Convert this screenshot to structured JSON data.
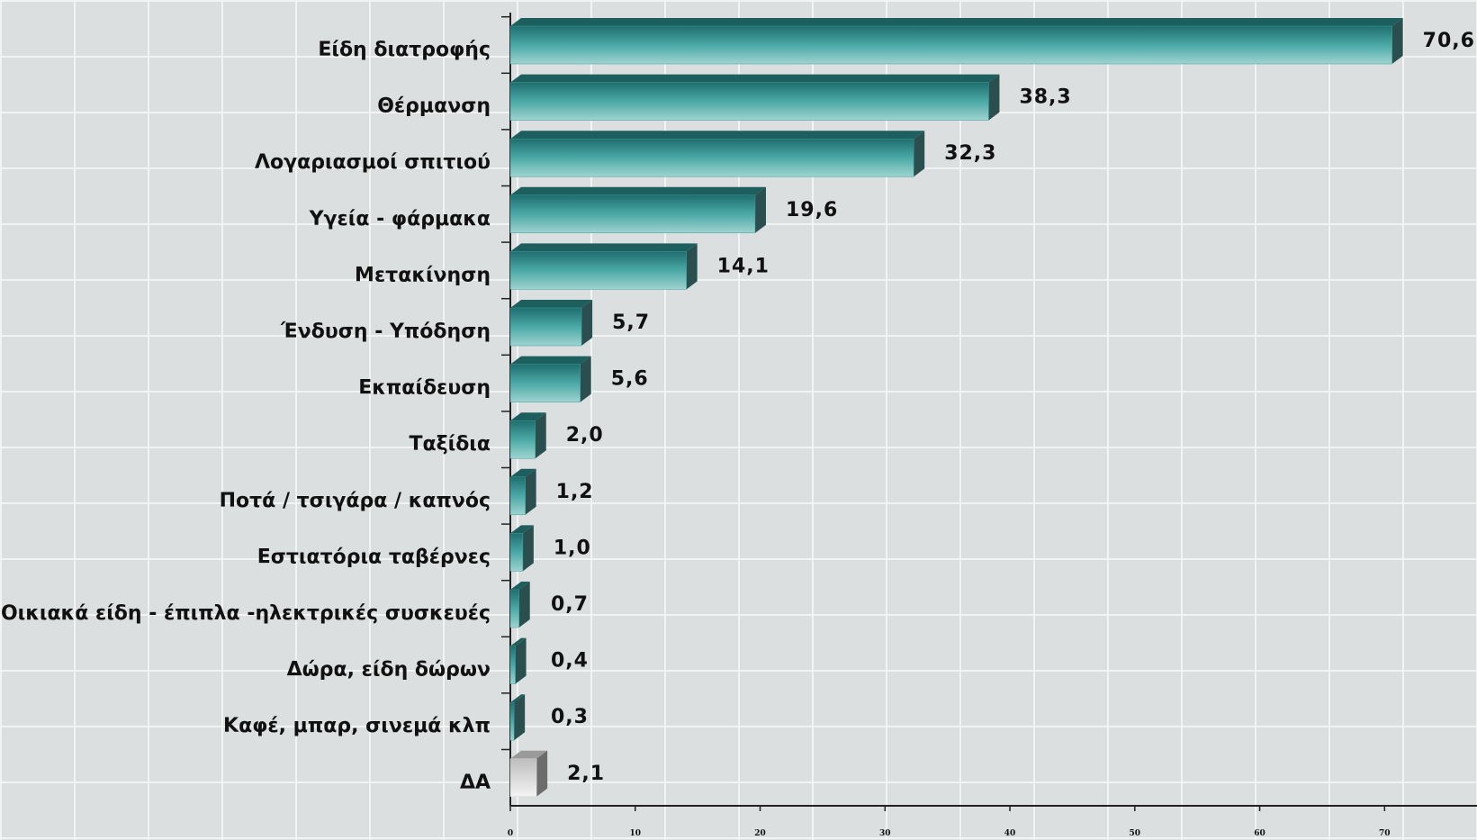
{
  "chart_data": {
    "type": "hbar",
    "categories": [
      "Είδη διατροφής",
      "Θέρμανση",
      "Λογαριασμοί σπιτιού",
      "Υγεία - φάρμακα",
      "Μετακίνηση",
      "Ένδυση - Υπόδηση",
      "Εκπαίδευση",
      "Ταξίδια",
      "Ποτά / τσιγάρα / καπνός",
      "Εστιατόρια ταβέρνες",
      "Οικιακά είδη - έπιπλα -ηλεκτρικές συσκευές",
      "Δώρα, είδη δώρων",
      "Καφέ, μπαρ, σινεμά κλπ",
      "ΔΑ"
    ],
    "values": [
      70.6,
      38.3,
      32.3,
      19.6,
      14.1,
      5.7,
      5.6,
      2.0,
      1.2,
      1.0,
      0.7,
      0.4,
      0.3,
      2.1
    ],
    "value_labels": [
      "70,6",
      "38,3",
      "32,3",
      "19,6",
      "14,1",
      "5,7",
      "5,6",
      "2,0",
      "1,2",
      "1,0",
      "0,7",
      "0,4",
      "0,3",
      "2,1"
    ],
    "colors": [
      "#3a9c9a",
      "#3a9c9a",
      "#3a9c9a",
      "#3a9c9a",
      "#3a9c9a",
      "#3a9c9a",
      "#3a9c9a",
      "#3a9c9a",
      "#3a9c9a",
      "#3a9c9a",
      "#3a9c9a",
      "#3a9c9a",
      "#3a9c9a",
      "#d4d4d4"
    ],
    "xlim": [
      0,
      77.4
    ],
    "xticks": [
      0,
      10,
      20,
      30,
      40,
      50,
      60,
      70
    ]
  }
}
